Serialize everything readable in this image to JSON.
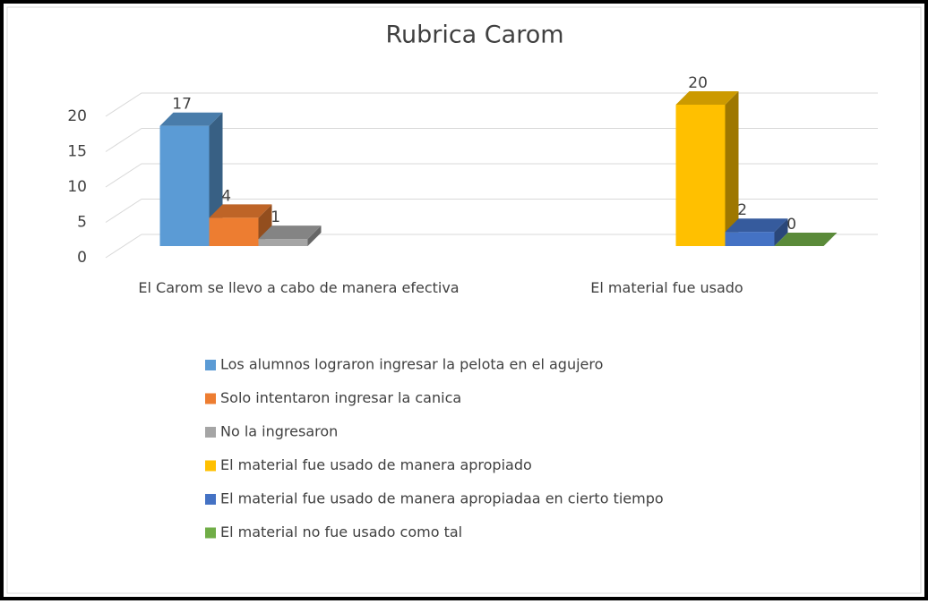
{
  "chart_data": {
    "type": "bar3d",
    "title": "Rubrica Carom",
    "categories": [
      "El Carom se llevo a cabo de manera efectiva",
      "El material fue usado"
    ],
    "series": [
      {
        "name": "Los alumnos lograron ingresar la pelota en el agujero",
        "color": "#5b9bd5",
        "values": [
          17,
          null
        ]
      },
      {
        "name": "Solo intentaron ingresar la canica",
        "color": "#ed7d31",
        "values": [
          4,
          null
        ]
      },
      {
        "name": "No la ingresaron",
        "color": "#a5a5a5",
        "values": [
          1,
          null
        ]
      },
      {
        "name": "El material fue usado de manera apropiado",
        "color": "#ffc000",
        "values": [
          null,
          20
        ]
      },
      {
        "name": "El material fue usado de manera apropiadaa en cierto tiempo",
        "color": "#4472c4",
        "values": [
          null,
          2
        ]
      },
      {
        "name": "El material no fue usado como tal",
        "color": "#70ad47",
        "values": [
          null,
          0
        ]
      }
    ],
    "ylim": [
      0,
      20
    ],
    "yticks": [
      0,
      5,
      10,
      15,
      20
    ],
    "grid": true,
    "legend": "bottom"
  }
}
